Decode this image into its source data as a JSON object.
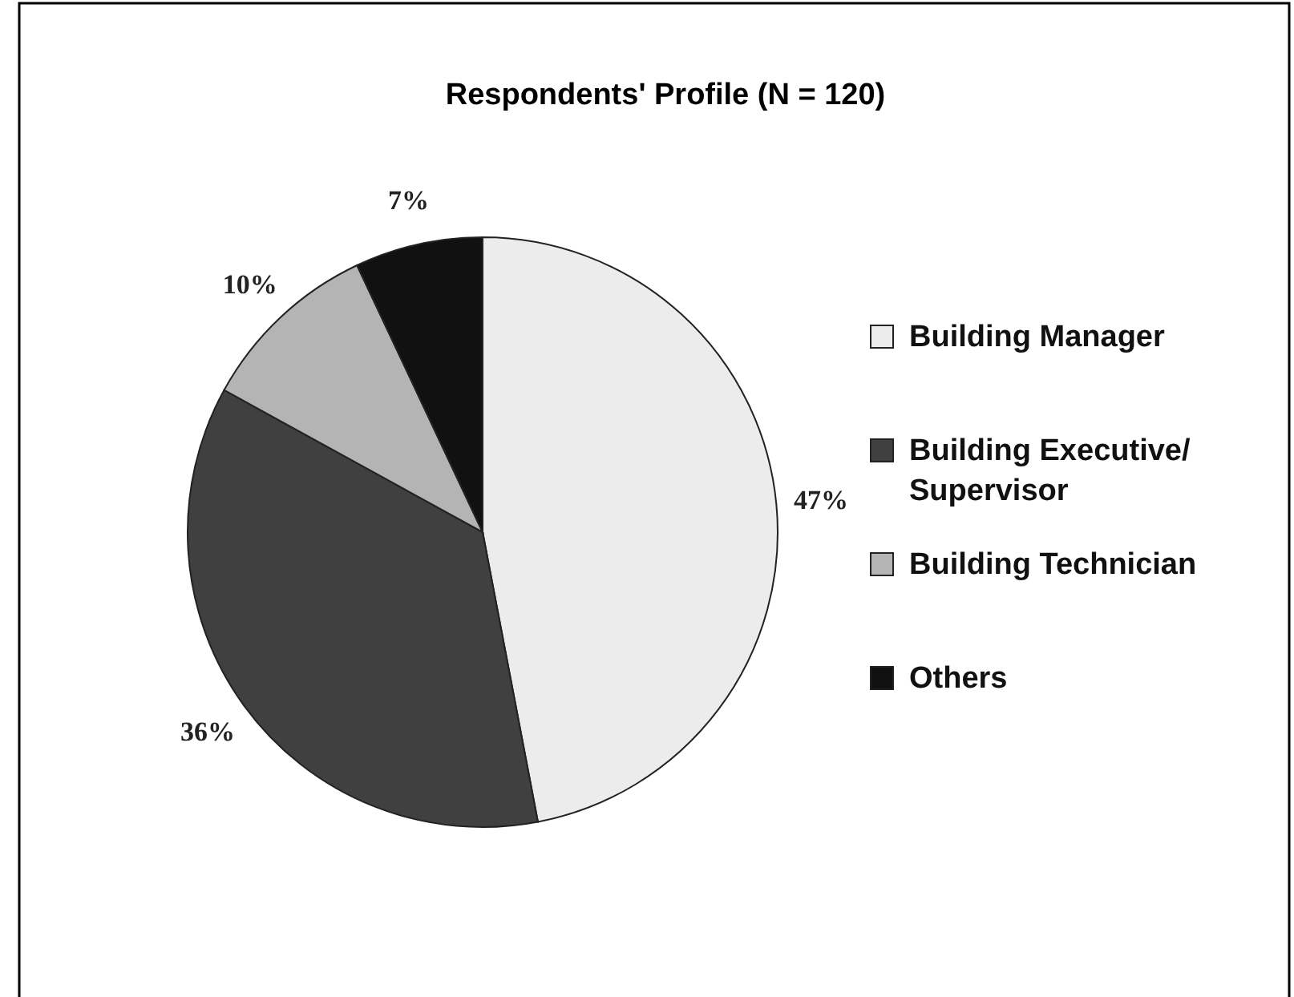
{
  "chart_data": {
    "type": "pie",
    "title": "Respondents' Profile (N = 120)",
    "categories": [
      "Building Manager",
      "Building Executive/ Supervisor",
      "Building Technician",
      "Others"
    ],
    "values": [
      47,
      36,
      10,
      7
    ],
    "colors": [
      "#ececec",
      "#404040",
      "#b4b4b4",
      "#111111"
    ],
    "value_labels": [
      "47%",
      "36%",
      "10%",
      "7%"
    ],
    "legend": "right"
  }
}
